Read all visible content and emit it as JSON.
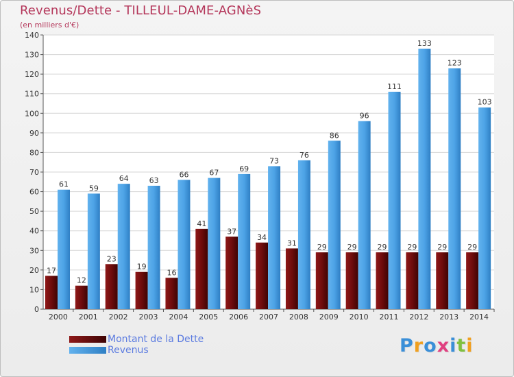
{
  "chart_data": {
    "type": "bar",
    "title": "Revenus/Dette - TILLEUL-DAME-AGNèS",
    "subtitle": "(en milliers d'€)",
    "categories": [
      "2000",
      "2001",
      "2002",
      "2003",
      "2004",
      "2005",
      "2006",
      "2007",
      "2008",
      "2009",
      "2010",
      "2011",
      "2012",
      "2013",
      "2014"
    ],
    "series": [
      {
        "name": "Montant de la Dette",
        "color": "#7a1010",
        "values": [
          17,
          12,
          23,
          19,
          16,
          41,
          37,
          34,
          31,
          29,
          29,
          29,
          29,
          29,
          29
        ]
      },
      {
        "name": "Revenus",
        "color": "#4da3e6",
        "values": [
          61,
          59,
          64,
          63,
          66,
          67,
          69,
          73,
          76,
          86,
          96,
          111,
          133,
          123,
          103
        ]
      }
    ],
    "ylim": [
      0,
      140
    ],
    "yticks": [
      0,
      10,
      20,
      30,
      40,
      50,
      60,
      70,
      80,
      90,
      100,
      110,
      120,
      130,
      140
    ],
    "grid": true,
    "legend_position": "bottom-left"
  },
  "brand": {
    "letters": [
      "P",
      "r",
      "o",
      "x",
      "i",
      "t",
      "i"
    ],
    "colors": [
      "#3a8fd8",
      "#f0a020",
      "#3a8fd8",
      "#e04080",
      "#3a8fd8",
      "#80c040",
      "#f0a020"
    ]
  }
}
